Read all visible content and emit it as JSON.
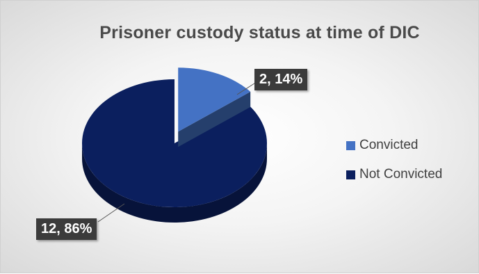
{
  "chart_data": {
    "type": "pie",
    "title": "Prisoner custody status at time of DIC",
    "categories": [
      "Convicted",
      "Not Convicted"
    ],
    "values": [
      2,
      12
    ],
    "percentages": [
      "14%",
      "86%"
    ],
    "data_labels": [
      "2, 14%",
      "12, 86%"
    ],
    "colors": [
      "#4472C4",
      "#0B1F5E"
    ],
    "exploded": "Convicted",
    "style": "3d",
    "legend_position": "right"
  }
}
